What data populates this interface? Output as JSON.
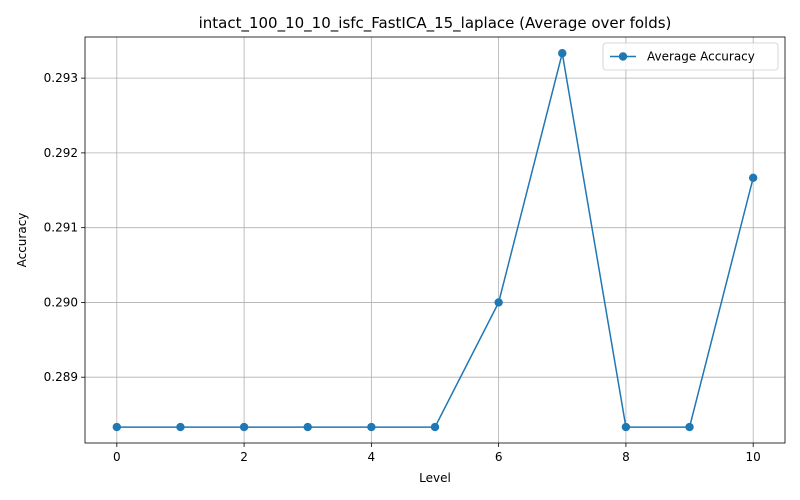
{
  "chart_data": {
    "type": "line",
    "title": "intact_100_10_10_isfc_FastICA_15_laplace (Average over folds)",
    "xlabel": "Level",
    "ylabel": "Accuracy",
    "xlim": [
      -0.5,
      10.5
    ],
    "ylim": [
      0.28812,
      0.29355
    ],
    "x_ticks": [
      0,
      2,
      4,
      6,
      8,
      10
    ],
    "y_ticks": [
      0.289,
      0.29,
      0.291,
      0.292,
      0.293
    ],
    "grid": true,
    "legend_position": "top-right",
    "series": [
      {
        "name": "Average Accuracy",
        "color": "#1f77b4",
        "marker": "circle",
        "x": [
          0,
          1,
          2,
          3,
          4,
          5,
          6,
          7,
          8,
          9,
          10
        ],
        "y": [
          0.288333,
          0.288333,
          0.288333,
          0.288333,
          0.288333,
          0.288333,
          0.29,
          0.293333,
          0.288333,
          0.288333,
          0.291667
        ]
      }
    ]
  }
}
